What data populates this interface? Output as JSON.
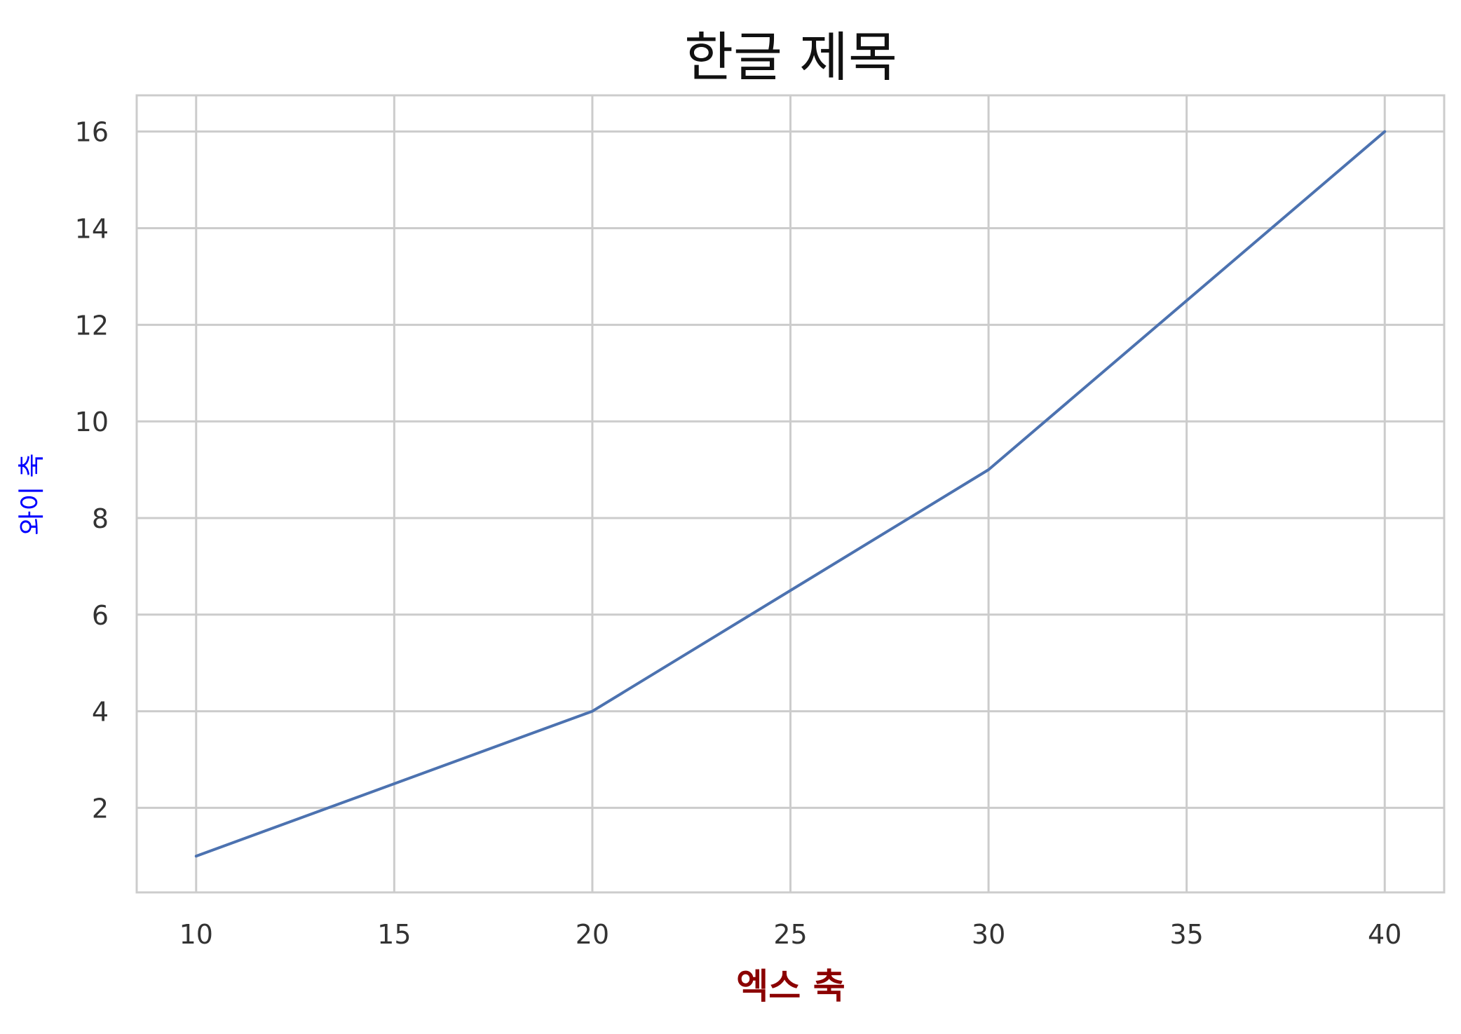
{
  "chart_data": {
    "type": "line",
    "title": "한글 제목",
    "xlabel": "엑스 축",
    "ylabel": "와이 축",
    "xlabel_color": "#8b0000",
    "ylabel_color": "#0000ff",
    "xlim": [
      8.5,
      41.5
    ],
    "ylim": [
      0.25,
      16.75
    ],
    "xticks": [
      10,
      15,
      20,
      25,
      30,
      35,
      40
    ],
    "yticks": [
      2,
      4,
      6,
      8,
      10,
      12,
      14,
      16
    ],
    "grid": true,
    "line_color": "#4c72b0",
    "series": [
      {
        "x": [
          10,
          20,
          30,
          40
        ],
        "y": [
          1,
          4,
          9,
          16
        ]
      }
    ]
  }
}
